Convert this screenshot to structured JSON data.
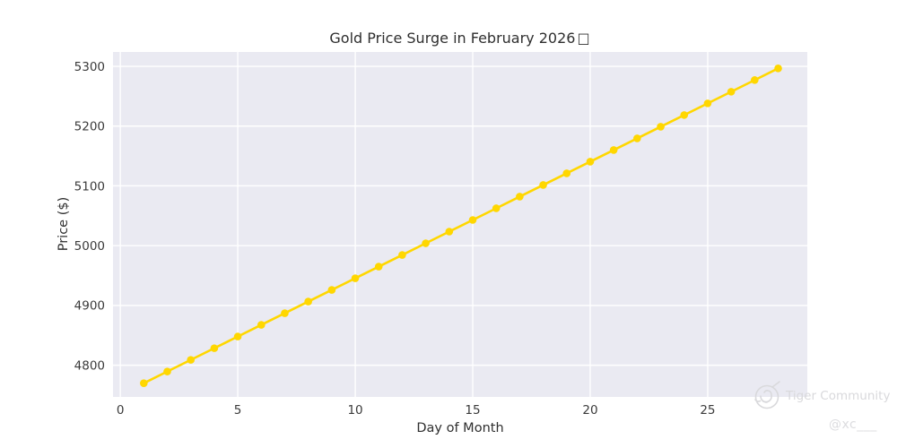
{
  "chart_data": {
    "type": "line",
    "title": "Gold Price Surge in February 2026",
    "title_suffix_glyph": "□",
    "xlabel": "Day of Month",
    "ylabel": "Price ($)",
    "x": [
      1,
      2,
      3,
      4,
      5,
      6,
      7,
      8,
      9,
      10,
      11,
      12,
      13,
      14,
      15,
      16,
      17,
      18,
      19,
      20,
      21,
      22,
      23,
      24,
      25,
      26,
      27,
      28
    ],
    "values": [
      4770.0,
      4789.5,
      4809.0,
      4828.5,
      4848.0,
      4867.5,
      4887.0,
      4906.5,
      4926.0,
      4945.5,
      4965.0,
      4984.5,
      5004.0,
      5023.5,
      5043.0,
      5062.5,
      5082.0,
      5101.5,
      5121.0,
      5140.5,
      5160.0,
      5179.5,
      5199.0,
      5218.5,
      5238.0,
      5257.5,
      5277.0,
      5296.5
    ],
    "xticks": [
      0,
      5,
      10,
      15,
      20,
      25
    ],
    "yticks": [
      4800,
      4900,
      5000,
      5100,
      5200,
      5300
    ],
    "xlim": [
      -0.31,
      29.24
    ],
    "ylim": [
      4747,
      5324
    ],
    "grid": true,
    "legend": "none",
    "marker": "circle",
    "colors": {
      "line": "#FFD700",
      "plot_bg": "#EAEAF2",
      "grid": "#FFFFFF",
      "text": "#3a3a3a",
      "figure_bg": "#FFFFFF",
      "watermark": "#D9D9DC"
    }
  },
  "watermark": {
    "brand": "Tiger Community",
    "handle": "@xc___",
    "logo_icon": "tiger-community-logo"
  }
}
